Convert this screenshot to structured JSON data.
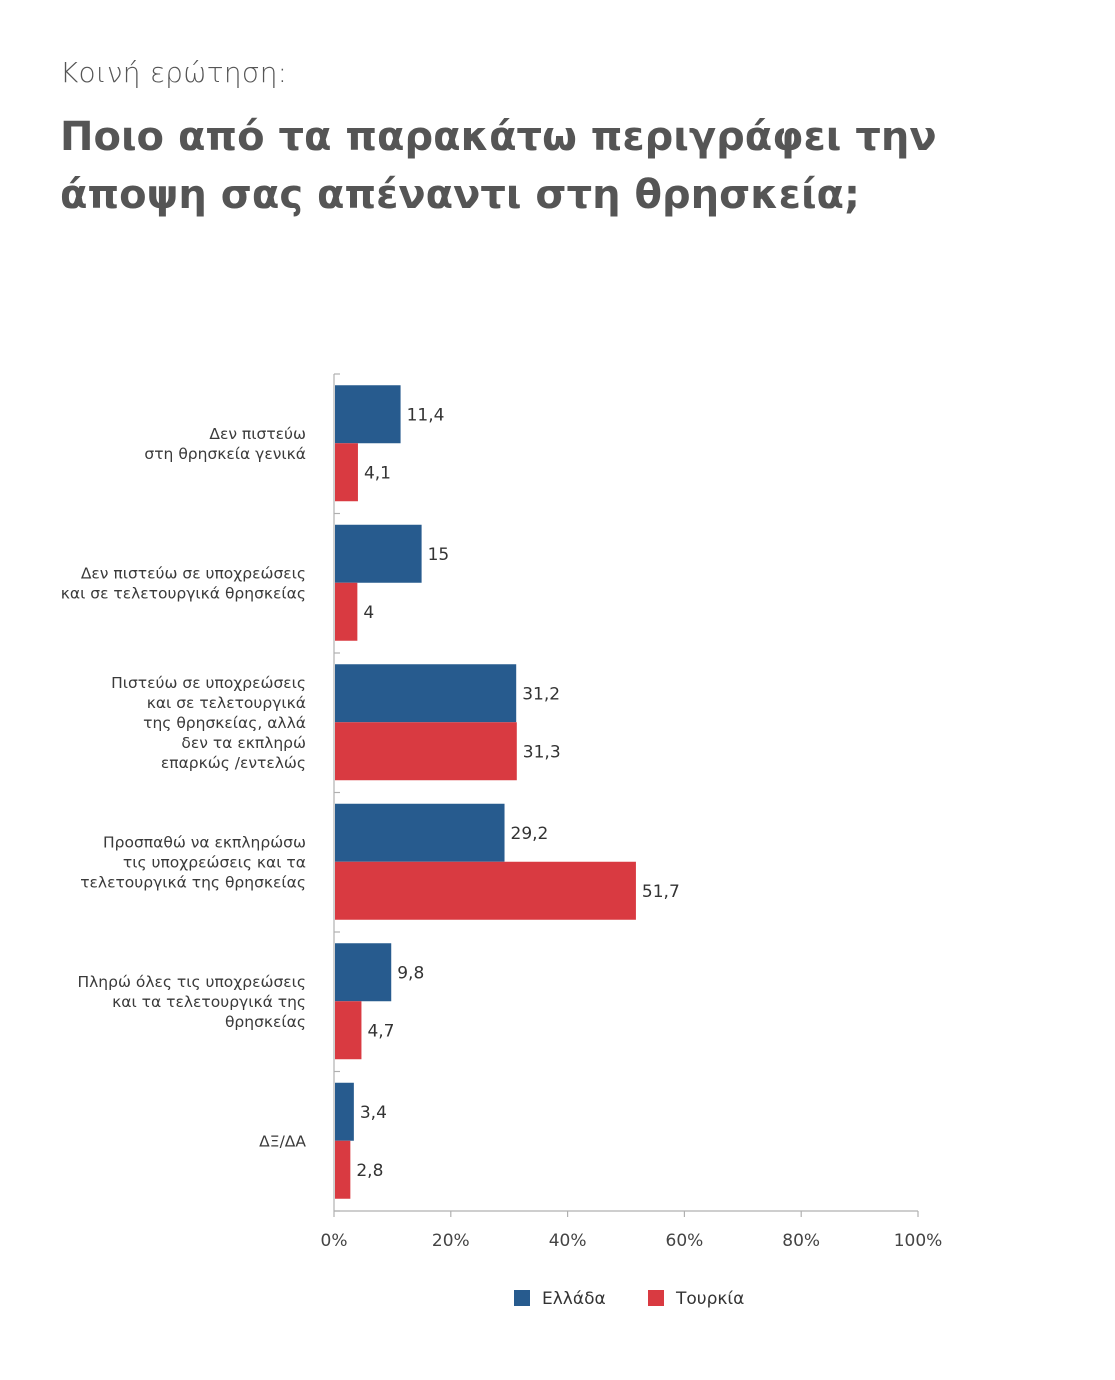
{
  "header": {
    "subtitle": "Κοινή ερώτηση:",
    "title": "Ποιο από τα παρακάτω περιγράφει την άποψη σας απέναντι στη θρησκεία;"
  },
  "chart_data": {
    "type": "bar",
    "orientation": "horizontal",
    "categories": [
      [
        "Δεν πιστεύω",
        "στη θρησκεία γενικά"
      ],
      [
        "Δεν πιστεύω σε υποχρεώσεις",
        "και σε τελετουργικά θρησκείας"
      ],
      [
        "Πιστεύω σε υποχρεώσεις",
        "και σε τελετουργικά",
        "της θρησκείας, αλλά",
        "δεν τα εκπληρώ",
        "επαρκώς /εντελώς"
      ],
      [
        "Προσπαθώ να εκπληρώσω",
        "τις υποχρεώσεις και τα",
        "τελετουργικά της θρησκείας"
      ],
      [
        "Πληρώ όλες τις υποχρεώσεις",
        "και τα τελετουργικά της",
        "θρησκείας"
      ],
      [
        "ΔΞ/ΔΑ"
      ]
    ],
    "series": [
      {
        "name": "Ελλάδα",
        "color": "#275b8e",
        "values": [
          11.4,
          15,
          31.2,
          29.2,
          9.8,
          3.4
        ],
        "labels": [
          "11,4",
          "15",
          "31,2",
          "29,2",
          "9,8",
          "3,4"
        ]
      },
      {
        "name": "Τουρκία",
        "color": "#d93a41",
        "values": [
          4.1,
          4,
          31.3,
          51.7,
          4.7,
          2.8
        ],
        "labels": [
          "4,1",
          "4",
          "31,3",
          "51,7",
          "4,7",
          "2,8"
        ]
      }
    ],
    "xlim": [
      0,
      100
    ],
    "ticks": [
      0,
      20,
      40,
      60,
      80,
      100
    ],
    "tick_labels": [
      "0%",
      "20%",
      "40%",
      "60%",
      "80%",
      "100%"
    ],
    "legend_position": "bottom",
    "grid": false
  }
}
